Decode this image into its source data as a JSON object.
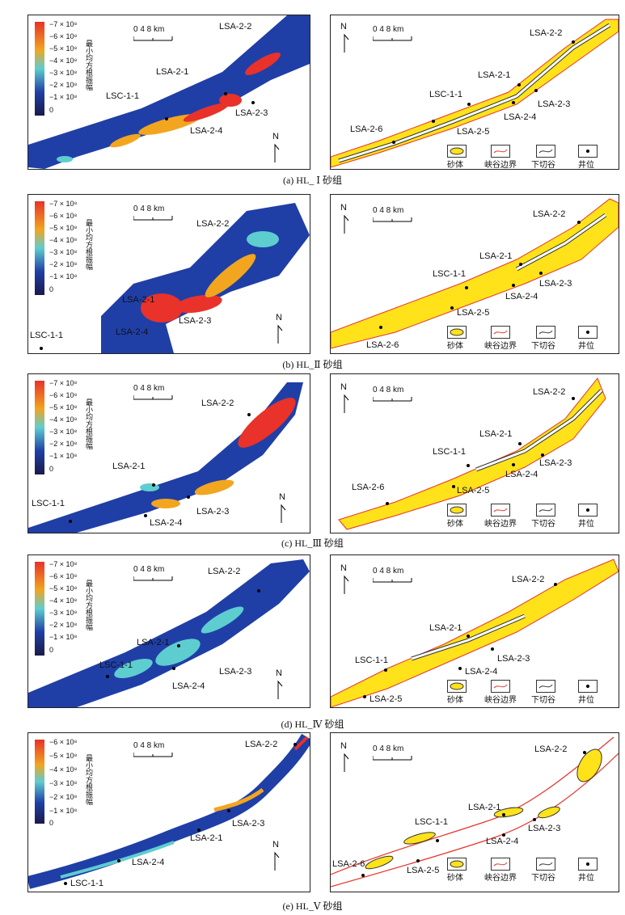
{
  "panels": [
    {
      "caption": "(a) HL_ Ⅰ 砂组",
      "colorbar_ticks": [
        "−7 × 10⁸",
        "−6 × 10⁸",
        "−5 × 10⁸",
        "−4 × 10⁸",
        "−3 × 10⁸",
        "−2 × 10⁸",
        "−1 × 10⁸",
        "0"
      ],
      "left_labels": [
        "LSA-2-2",
        "LSA-2-1",
        "LSC-1-1",
        "LSA-2-3",
        "LSA-2-4"
      ],
      "right_labels": [
        "LSA-2-2",
        "LSA-2-1",
        "LSC-1-1",
        "LSA-2-3",
        "LSA-2-4",
        "LSA-2-6",
        "LSA-2-5"
      ]
    },
    {
      "caption": "(b) HL_Ⅱ 砂组",
      "colorbar_ticks": [
        "−7 × 10⁸",
        "−6 × 10⁸",
        "−5 × 10⁸",
        "−4 × 10⁸",
        "−3 × 10⁸",
        "−2 × 10⁸",
        "−1 × 10⁸",
        "0"
      ],
      "left_labels": [
        "LSA-2-2",
        "LSA-2-1",
        "LSA-2-3",
        "LSA-2-4",
        "LSC-1-1"
      ],
      "right_labels": [
        "LSA-2-2",
        "LSA-2-1",
        "LSC-1-1",
        "LSA-2-3",
        "LSA-2-4",
        "LSA-2-5",
        "LSA-2-6"
      ]
    },
    {
      "caption": "(c) HL_Ⅲ 砂组",
      "colorbar_ticks": [
        "−7 × 10⁸",
        "−6 × 10⁸",
        "−5 × 10⁸",
        "−4 × 10⁸",
        "−3 × 10⁸",
        "−2 × 10⁸",
        "−1 × 10⁸",
        "0"
      ],
      "left_labels": [
        "LSA-2-2",
        "LSA-2-1",
        "LSC-1-1",
        "LSA-2-3",
        "LSA-2-4"
      ],
      "right_labels": [
        "LSA-2-2",
        "LSA-2-1",
        "LSC-1-1",
        "LSA-2-3",
        "LSA-2-4",
        "LSA-2-6",
        "LSA-2-5"
      ]
    },
    {
      "caption": "(d) HL_Ⅳ 砂组",
      "colorbar_ticks": [
        "−7 × 10⁸",
        "−6 × 10⁸",
        "−5 × 10⁸",
        "−4 × 10⁸",
        "−3 × 10⁸",
        "−2 × 10⁸",
        "−1 × 10⁸",
        "0"
      ],
      "left_labels": [
        "LSA-2-2",
        "LSA-2-1",
        "LSC-1-1",
        "LSA-2-3",
        "LSA-2-4"
      ],
      "right_labels": [
        "LSA-2-2",
        "LSA-2-1",
        "LSC-1-1",
        "LSA-2-3",
        "LSA-2-4",
        "LSA-2-5"
      ]
    },
    {
      "caption": "(e) HL_Ⅴ 砂组",
      "colorbar_ticks": [
        "−6 × 10⁸",
        "−5 × 10⁸",
        "−4 × 10⁸",
        "−3 × 10⁸",
        "−2 × 10⁸",
        "−1 × 10⁸",
        "0"
      ],
      "left_labels": [
        "LSA-2-2",
        "LSA-2-3",
        "LSA-2-1",
        "LSA-2-4",
        "LSC-1-1"
      ],
      "right_labels": [
        "LSA-2-2",
        "LSA-2-1",
        "LSC-1-1",
        "LSA-2-3",
        "LSA-2-4",
        "LSA-2-6",
        "LSA-2-5"
      ]
    }
  ],
  "common": {
    "colorbar_title": "最小均方根振幅",
    "scale_text": "0  4  8 km",
    "north": "N",
    "legend": [
      "砂体",
      "峡谷边界",
      "下切谷",
      "井位"
    ]
  },
  "colors": {
    "background_blue": "#1f3fa6",
    "sand_yellow": "#ffe21a",
    "canyon_red": "#e8332b",
    "hot_red": "#e8322a"
  }
}
